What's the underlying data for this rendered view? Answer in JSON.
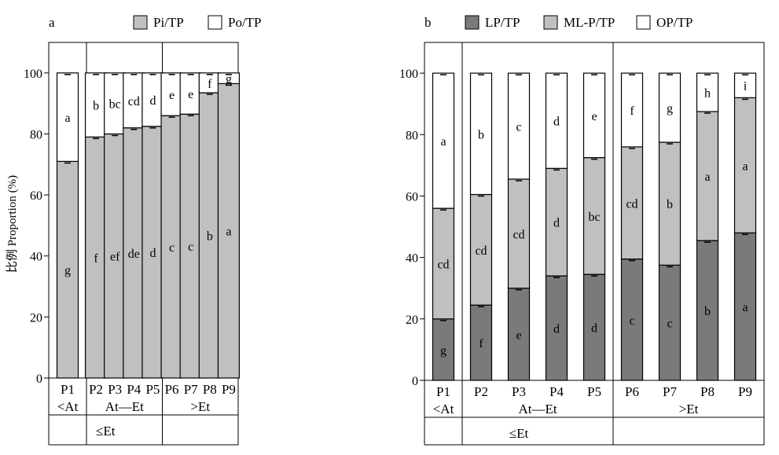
{
  "colors": {
    "pi": "#c0c0c0",
    "po": "#ffffff",
    "lp": "#7a7a7a",
    "mlp": "#c0c0c0",
    "op": "#ffffff",
    "stroke": "#000000"
  },
  "chart_data": [
    {
      "type": "bar",
      "stacked": true,
      "panel_label": "a",
      "ylabel": "比例 Proportion (%)",
      "ylim": [
        0,
        110
      ],
      "yticks": [
        0,
        20,
        40,
        60,
        80,
        100
      ],
      "categories": [
        "P1",
        "P2",
        "P3",
        "P4",
        "P5",
        "P6",
        "P7",
        "P8",
        "P9"
      ],
      "groups_level1": [
        {
          "label": "<At",
          "range": [
            0,
            0
          ]
        },
        {
          "label": "At—Et",
          "range": [
            1,
            4
          ]
        },
        {
          "label": ">Et",
          "range": [
            5,
            8
          ]
        }
      ],
      "groups_level2": [
        {
          "label": "≤Et",
          "range": [
            0,
            4
          ]
        }
      ],
      "legend_position": "top",
      "series": [
        {
          "name": "Pi/TP",
          "color": "#c0c0c0",
          "values": [
            71,
            79,
            80,
            82,
            82.5,
            86,
            86.5,
            93.5,
            96.5
          ],
          "letters": [
            "g",
            "f",
            "ef",
            "de",
            "d",
            "c",
            "c",
            "b",
            "a"
          ]
        },
        {
          "name": "Po/TP",
          "color": "#ffffff",
          "values": [
            29,
            21,
            20,
            18,
            17.5,
            14,
            13.5,
            6.5,
            3.5
          ],
          "letters": [
            "a",
            "b",
            "bc",
            "cd",
            "d",
            "e",
            "e",
            "f",
            "g"
          ]
        }
      ]
    },
    {
      "type": "bar",
      "stacked": true,
      "panel_label": "b",
      "ylabel": "",
      "ylim": [
        0,
        110
      ],
      "yticks": [
        0,
        20,
        40,
        60,
        80,
        100
      ],
      "categories": [
        "P1",
        "P2",
        "P3",
        "P4",
        "P5",
        "P6",
        "P7",
        "P8",
        "P9"
      ],
      "groups_level1": [
        {
          "label": "<At",
          "range": [
            0,
            0
          ]
        },
        {
          "label": "At—Et",
          "range": [
            1,
            4
          ]
        },
        {
          "label": ">Et",
          "range": [
            5,
            8
          ]
        }
      ],
      "groups_level2": [
        {
          "label": "≤Et",
          "range": [
            0,
            4
          ]
        }
      ],
      "legend_position": "top",
      "series": [
        {
          "name": "LP/TP",
          "color": "#7a7a7a",
          "values": [
            20,
            24.5,
            30,
            34,
            34.5,
            39.5,
            37.5,
            45.5,
            48
          ],
          "letters": [
            "g",
            "f",
            "e",
            "d",
            "d",
            "c",
            "c",
            "b",
            "a"
          ]
        },
        {
          "name": "ML-P/TP",
          "color": "#c0c0c0",
          "values": [
            36,
            36,
            35.5,
            35,
            38,
            36.5,
            40,
            42,
            44
          ],
          "letters": [
            "cd",
            "cd",
            "cd",
            "d",
            "bc",
            "cd",
            "b",
            "a",
            "a"
          ]
        },
        {
          "name": "OP/TP",
          "color": "#ffffff",
          "values": [
            44,
            39.5,
            34.5,
            31,
            27.5,
            24,
            22.5,
            12.5,
            8
          ],
          "letters": [
            "a",
            "b",
            "c",
            "d",
            "e",
            "f",
            "g",
            "h",
            "i"
          ]
        }
      ]
    }
  ]
}
